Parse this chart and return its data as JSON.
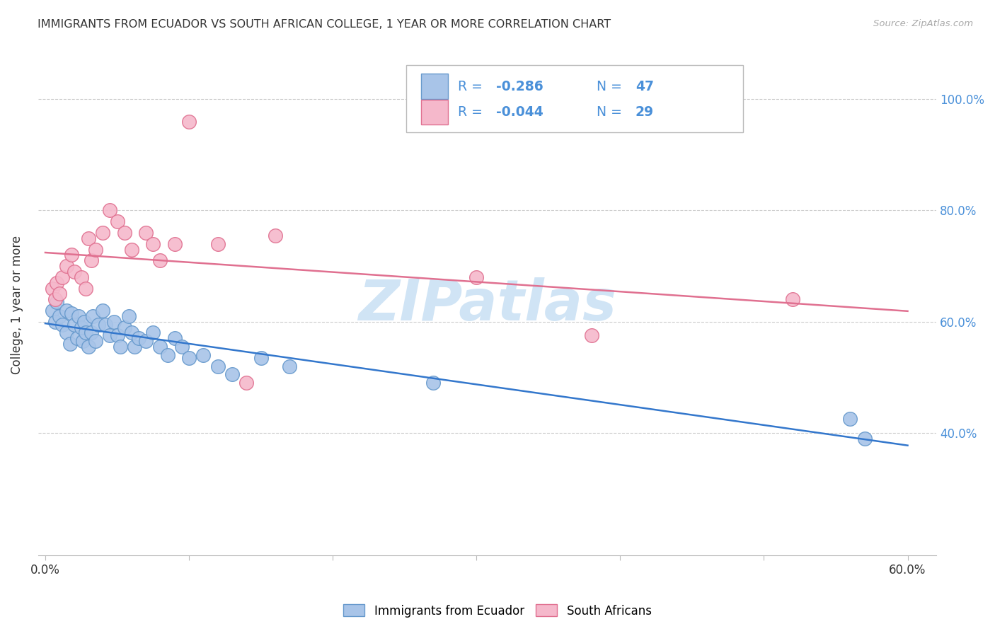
{
  "title": "IMMIGRANTS FROM ECUADOR VS SOUTH AFRICAN COLLEGE, 1 YEAR OR MORE CORRELATION CHART",
  "source": "Source: ZipAtlas.com",
  "ylabel": "College, 1 year or more",
  "xlim": [
    -0.005,
    0.62
  ],
  "ylim": [
    0.18,
    1.08
  ],
  "yticks": [
    0.4,
    0.6,
    0.8,
    1.0
  ],
  "ytick_labels": [
    "40.0%",
    "60.0%",
    "80.0%",
    "100.0%"
  ],
  "xtick_positions": [
    0.0,
    0.1,
    0.2,
    0.3,
    0.4,
    0.5,
    0.6
  ],
  "xtick_labels_show": [
    "0.0%",
    "",
    "",
    "",
    "",
    "",
    "60.0%"
  ],
  "ecuador_color": "#a8c4e8",
  "ecuador_edge": "#6699cc",
  "southafrica_color": "#f5b8cb",
  "southafrica_edge": "#e07090",
  "blue_line_color": "#3377cc",
  "pink_line_color": "#e07090",
  "legend_r_ecuador": "-0.286",
  "legend_n_ecuador": "47",
  "legend_r_southafrica": "-0.044",
  "legend_n_southafrica": "29",
  "watermark": "ZIPatlas",
  "watermark_color": "#d0e4f5",
  "grid_color": "#cccccc",
  "tick_color": "#4a90d9",
  "ecuador_x": [
    0.005,
    0.007,
    0.008,
    0.01,
    0.012,
    0.015,
    0.015,
    0.017,
    0.018,
    0.02,
    0.022,
    0.023,
    0.025,
    0.026,
    0.027,
    0.028,
    0.03,
    0.032,
    0.033,
    0.035,
    0.037,
    0.04,
    0.042,
    0.045,
    0.048,
    0.05,
    0.052,
    0.055,
    0.058,
    0.06,
    0.062,
    0.065,
    0.07,
    0.075,
    0.08,
    0.085,
    0.09,
    0.095,
    0.1,
    0.11,
    0.12,
    0.13,
    0.15,
    0.17,
    0.27,
    0.56,
    0.57
  ],
  "ecuador_y": [
    0.62,
    0.6,
    0.635,
    0.61,
    0.595,
    0.62,
    0.58,
    0.56,
    0.615,
    0.595,
    0.57,
    0.61,
    0.59,
    0.565,
    0.6,
    0.58,
    0.555,
    0.58,
    0.61,
    0.565,
    0.595,
    0.62,
    0.595,
    0.575,
    0.6,
    0.575,
    0.555,
    0.59,
    0.61,
    0.58,
    0.555,
    0.57,
    0.565,
    0.58,
    0.555,
    0.54,
    0.57,
    0.555,
    0.535,
    0.54,
    0.52,
    0.505,
    0.535,
    0.52,
    0.49,
    0.425,
    0.39
  ],
  "southafrica_x": [
    0.005,
    0.007,
    0.008,
    0.01,
    0.012,
    0.015,
    0.018,
    0.02,
    0.025,
    0.028,
    0.03,
    0.032,
    0.035,
    0.04,
    0.045,
    0.05,
    0.055,
    0.06,
    0.07,
    0.075,
    0.08,
    0.09,
    0.1,
    0.12,
    0.14,
    0.16,
    0.3,
    0.38,
    0.52
  ],
  "southafrica_y": [
    0.66,
    0.64,
    0.67,
    0.65,
    0.68,
    0.7,
    0.72,
    0.69,
    0.68,
    0.66,
    0.75,
    0.71,
    0.73,
    0.76,
    0.8,
    0.78,
    0.76,
    0.73,
    0.76,
    0.74,
    0.71,
    0.74,
    0.96,
    0.74,
    0.49,
    0.755,
    0.68,
    0.575,
    0.64
  ]
}
